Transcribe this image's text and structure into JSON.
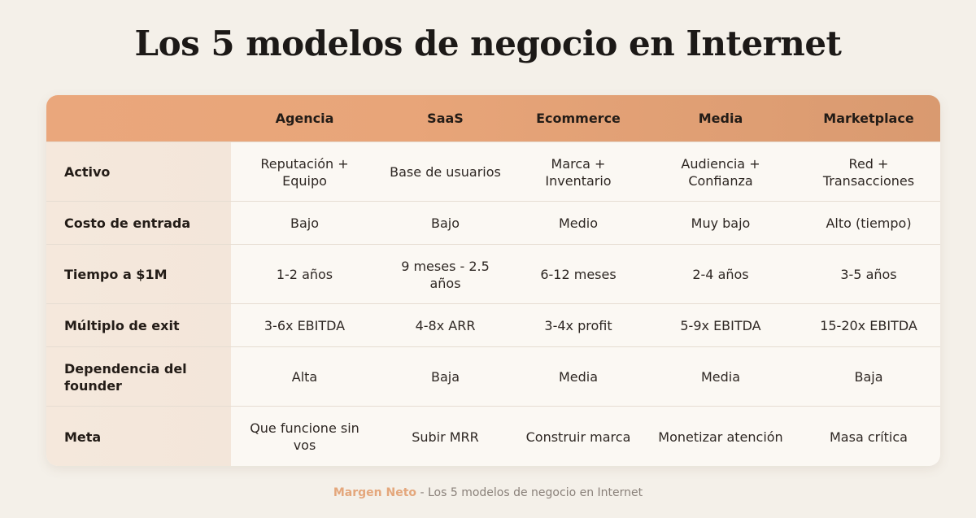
{
  "title": "Los 5 modelos de negocio en Internet",
  "columns": [
    "",
    "Agencia",
    "SaaS",
    "Ecommerce",
    "Media",
    "Marketplace"
  ],
  "rows": [
    {
      "label": "Activo",
      "cells": [
        "Reputación + Equipo",
        "Base de usuarios",
        "Marca + Inventario",
        "Audiencia + Confianza",
        "Red + Transacciones"
      ]
    },
    {
      "label": "Costo de entrada",
      "cells": [
        "Bajo",
        "Bajo",
        "Medio",
        "Muy bajo",
        "Alto (tiempo)"
      ]
    },
    {
      "label": "Tiempo a $1M",
      "cells": [
        "1-2 años",
        "9 meses - 2.5 años",
        "6-12 meses",
        "2-4 años",
        "3-5 años"
      ]
    },
    {
      "label": "Múltiplo de exit",
      "cells": [
        "3-6x EBITDA",
        "4-8x ARR",
        "3-4x profit",
        "5-9x EBITDA",
        "15-20x EBITDA"
      ]
    },
    {
      "label": "Dependencia del founder",
      "cells": [
        "Alta",
        "Baja",
        "Media",
        "Media",
        "Baja"
      ]
    },
    {
      "label": "Meta",
      "cells": [
        "Que funcione sin vos",
        "Subir MRR",
        "Construir marca",
        "Monetizar atención",
        "Masa crítica"
      ]
    }
  ],
  "footer": {
    "brand": "Margen Neto",
    "separator": " - ",
    "text": "Los 5 modelos de negocio en Internet"
  },
  "colors": {
    "header_start": "#eaa77c",
    "header_end": "#d99a70",
    "label_bg": "#f5e8dc",
    "page_bg": "#f4f0e9",
    "brand": "#e4a77c"
  }
}
